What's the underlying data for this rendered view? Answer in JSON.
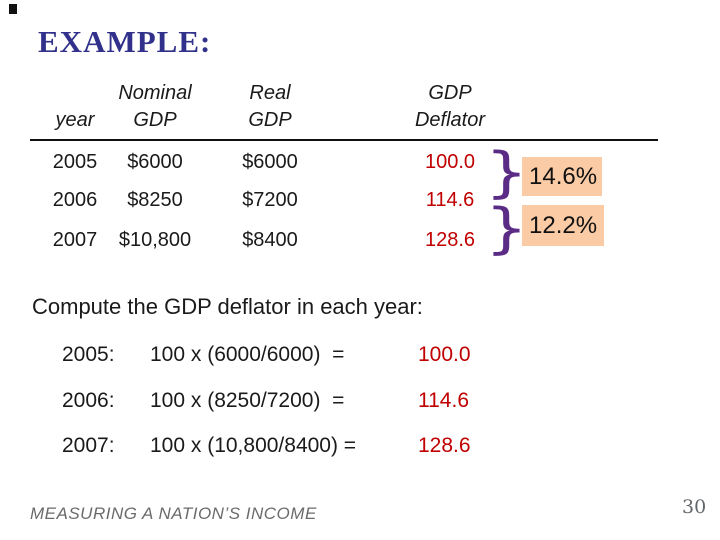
{
  "slide": {
    "title": "EXAMPLE:",
    "table": {
      "headers": {
        "year": "year",
        "nominal_top": "Nominal",
        "nominal_bottom": "GDP",
        "real_top": "Real",
        "real_bottom": "GDP",
        "deflator_top": "GDP",
        "deflator_bottom": "Deflator"
      },
      "rows": [
        {
          "year": "2005",
          "nominal_gdp": "$6000",
          "real_gdp": "$6000",
          "deflator": "100.0"
        },
        {
          "year": "2006",
          "nominal_gdp": "$8250",
          "real_gdp": "$7200",
          "deflator": "114.6"
        },
        {
          "year": "2007",
          "nominal_gdp": "$10,800",
          "real_gdp": "$8400",
          "deflator": "128.6"
        }
      ]
    },
    "growth_callouts": [
      {
        "value": "14.6%"
      },
      {
        "value": "12.2%"
      }
    ],
    "prompt": "Compute the GDP deflator in each year:",
    "calculations": [
      {
        "year": "2005:",
        "formula": "100 x (6000/6000)  =",
        "result": "100.0"
      },
      {
        "year": "2006:",
        "formula": "100 x (8250/7200)  =",
        "result": "114.6"
      },
      {
        "year": "2007:",
        "formula": "100 x (10,800/8400) =",
        "result": "128.6"
      }
    ],
    "footer": {
      "text": "MEASURING A NATION’S INCOME",
      "page_number": "30"
    }
  },
  "glyphs": {
    "brace": "}"
  },
  "colors": {
    "title_navy": "#31318B",
    "value_red": "#C00000",
    "brace_purple": "#5B2C86",
    "highlight_peach": "#FACBA4",
    "footer_gray": "#6B6B6B"
  }
}
